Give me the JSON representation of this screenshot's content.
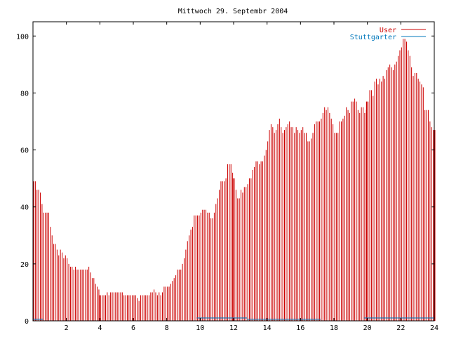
{
  "chart_data": {
    "type": "bar",
    "title": "Mittwoch 29. Septembr 2004",
    "xlabel": "",
    "ylabel": "",
    "xlim": [
      0,
      24
    ],
    "ylim": [
      0,
      105
    ],
    "x_ticks": [
      "2",
      "4",
      "6",
      "8",
      "10",
      "12",
      "14",
      "16",
      "18",
      "20",
      "22",
      "24"
    ],
    "y_ticks": [
      "0",
      "20",
      "40",
      "60",
      "80",
      "100"
    ],
    "legend_position": "top-right",
    "grid": false,
    "series": [
      {
        "name": "User",
        "color": "#cc0000",
        "interval_hours": 0.1,
        "values": [
          49,
          49,
          46,
          46,
          45,
          41,
          38,
          38,
          38,
          38,
          33,
          30,
          27,
          27,
          25,
          23,
          25,
          24,
          22,
          23,
          22,
          20,
          19,
          19,
          18,
          19,
          18,
          18,
          18,
          18,
          18,
          18,
          18,
          19,
          17,
          15,
          15,
          13,
          12,
          11,
          9,
          9,
          9,
          9,
          10,
          9,
          10,
          10,
          10,
          10,
          10,
          10,
          10,
          10,
          9,
          9,
          9,
          9,
          9,
          9,
          9,
          9,
          8,
          7,
          9,
          9,
          9,
          9,
          9,
          9,
          10,
          10,
          11,
          10,
          9,
          10,
          9,
          10,
          12,
          12,
          12,
          12,
          13,
          14,
          15,
          16,
          18,
          18,
          18,
          20,
          22,
          25,
          28,
          30,
          32,
          33,
          37,
          37,
          37,
          37,
          38,
          39,
          39,
          39,
          38,
          38,
          36,
          36,
          38,
          41,
          43,
          46,
          49,
          49,
          49,
          50,
          55,
          55,
          55,
          52,
          50,
          46,
          43,
          43,
          46,
          45,
          47,
          47,
          48,
          50,
          50,
          53,
          54,
          56,
          56,
          55,
          56,
          56,
          58,
          60,
          63,
          67,
          69,
          68,
          66,
          67,
          69,
          71,
          68,
          66,
          67,
          68,
          69,
          70,
          68,
          68,
          66,
          68,
          67,
          66,
          67,
          68,
          66,
          66,
          63,
          63,
          64,
          66,
          69,
          70,
          70,
          70,
          71,
          73,
          75,
          74,
          75,
          73,
          71,
          69,
          66,
          66,
          66,
          70,
          70,
          71,
          72,
          75,
          74,
          73,
          77,
          77,
          78,
          77,
          74,
          73,
          75,
          75,
          73,
          74,
          77,
          81,
          81,
          79,
          84,
          85,
          83,
          85,
          84,
          86,
          85,
          88,
          89,
          90,
          89,
          88,
          90,
          91,
          93,
          95,
          96,
          99,
          99,
          98,
          95,
          93,
          89,
          86,
          87,
          87,
          85,
          84,
          83,
          82,
          74,
          74,
          74,
          70,
          68,
          67,
          67
        ],
        "highlight_x": [
          4,
          12,
          20
        ]
      },
      {
        "name": "Stuttgarter",
        "color": "#0077bb",
        "segments": [
          {
            "x_start": 0.0,
            "x_end": 0.6,
            "value": 0.6
          },
          {
            "x_start": 9.8,
            "x_end": 12.8,
            "value": 1.0
          },
          {
            "x_start": 12.8,
            "x_end": 17.2,
            "value": 0.6
          },
          {
            "x_start": 19.8,
            "x_end": 24.0,
            "value": 1.0
          }
        ]
      }
    ]
  }
}
